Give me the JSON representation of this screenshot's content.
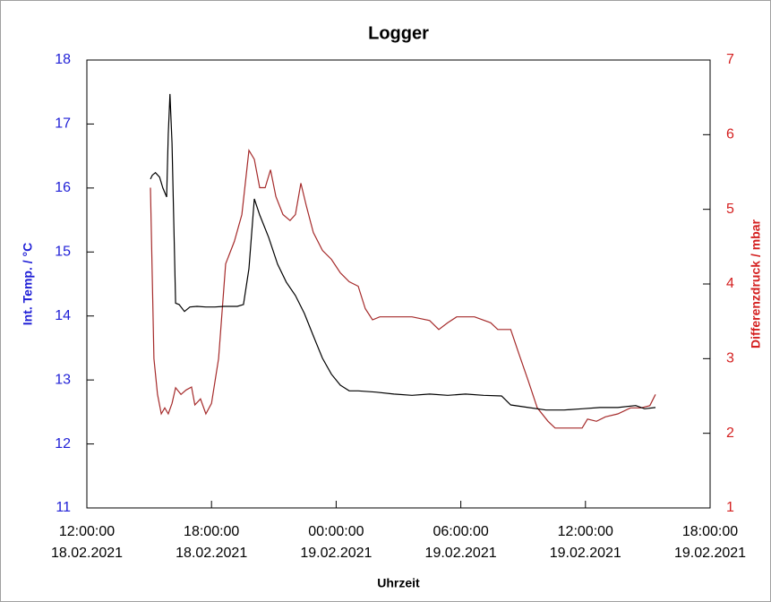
{
  "chart_data": {
    "type": "line",
    "title": "Logger",
    "x_label": "Uhrzeit",
    "y_label": "Int. Temp. / °C",
    "y2_label": "Differenzdruck / mbar",
    "y_color": "#1f1fd6",
    "y2_color": "#d42020",
    "xlim": [
      0,
      30
    ],
    "xticks": [
      {
        "value": 0,
        "label": "12:00:00 18.02.2021"
      },
      {
        "value": 6,
        "label": "18:00:00 18.02.2021"
      },
      {
        "value": 12,
        "label": "00:00:00 19.02.2021"
      },
      {
        "value": 18,
        "label": "06:00:00 19.02.2021"
      },
      {
        "value": 24,
        "label": "12:00:00 19.02.2021"
      },
      {
        "value": 30,
        "label": "18:00:00 19.02.2021"
      }
    ],
    "ylim": [
      11,
      18
    ],
    "yticks": [
      11,
      12,
      13,
      14,
      15,
      16,
      17,
      18
    ],
    "y2lim": [
      1,
      7
    ],
    "y2ticks": [
      1,
      2,
      3,
      4,
      5,
      6,
      7
    ],
    "series": [
      {
        "name": "Int. Temp.",
        "color": "#000000",
        "x": [
          3.06,
          3.15,
          3.3,
          3.5,
          3.66,
          3.84,
          3.92,
          4.0,
          4.1,
          4.27,
          4.44,
          4.7,
          4.96,
          5.3,
          5.73,
          6.16,
          6.6,
          7.24,
          7.54,
          7.8,
          8.06,
          8.32,
          8.75,
          9.18,
          9.6,
          10.04,
          10.47,
          10.9,
          11.34,
          11.77,
          12.2,
          12.63,
          13.06,
          13.9,
          14.78,
          15.65,
          16.5,
          17.37,
          18.23,
          19.1,
          19.96,
          20.4,
          21.25,
          22.1,
          22.97,
          23.84,
          24.7,
          25.56,
          26.42,
          26.85,
          27.37
        ],
        "values": [
          16.14,
          16.2,
          16.24,
          16.17,
          16.0,
          15.86,
          16.84,
          17.47,
          16.7,
          14.2,
          14.18,
          14.07,
          14.14,
          14.15,
          14.14,
          14.14,
          14.15,
          14.15,
          14.18,
          14.74,
          15.83,
          15.58,
          15.23,
          14.81,
          14.53,
          14.32,
          14.04,
          13.69,
          13.34,
          13.09,
          12.92,
          12.83,
          12.83,
          12.81,
          12.78,
          12.76,
          12.78,
          12.76,
          12.78,
          12.76,
          12.75,
          12.61,
          12.57,
          12.53,
          12.53,
          12.55,
          12.57,
          12.57,
          12.6,
          12.55,
          12.57
        ]
      },
      {
        "name": "Differenzdruck",
        "color": "#a52a2a",
        "axis": "y2",
        "x": [
          3.06,
          3.23,
          3.4,
          3.58,
          3.75,
          3.92,
          4.1,
          4.27,
          4.53,
          4.78,
          5.04,
          5.2,
          5.47,
          5.73,
          6.0,
          6.34,
          6.68,
          7.1,
          7.46,
          7.8,
          8.06,
          8.32,
          8.58,
          8.84,
          9.1,
          9.44,
          9.78,
          10.04,
          10.3,
          10.56,
          10.9,
          11.34,
          11.77,
          12.2,
          12.63,
          13.06,
          13.4,
          13.75,
          14.1,
          14.78,
          15.65,
          16.5,
          16.94,
          17.37,
          17.8,
          18.66,
          19.44,
          19.78,
          20.4,
          20.8,
          21.25,
          21.68,
          22.2,
          22.54,
          22.97,
          23.4,
          23.84,
          24.1,
          24.53,
          24.96,
          25.56,
          26.17,
          26.68,
          27.1,
          27.37
        ],
        "values": [
          5.29,
          3.0,
          2.52,
          2.26,
          2.34,
          2.26,
          2.4,
          2.61,
          2.52,
          2.58,
          2.62,
          2.38,
          2.46,
          2.26,
          2.4,
          3.0,
          4.27,
          4.57,
          4.93,
          5.79,
          5.67,
          5.29,
          5.29,
          5.53,
          5.17,
          4.93,
          4.85,
          4.93,
          5.35,
          5.05,
          4.69,
          4.45,
          4.33,
          4.15,
          4.03,
          3.97,
          3.67,
          3.52,
          3.56,
          3.56,
          3.56,
          3.51,
          3.39,
          3.48,
          3.56,
          3.56,
          3.48,
          3.39,
          3.39,
          3.06,
          2.7,
          2.34,
          2.16,
          2.07,
          2.07,
          2.07,
          2.07,
          2.19,
          2.16,
          2.22,
          2.26,
          2.34,
          2.34,
          2.37,
          2.52
        ]
      }
    ]
  }
}
